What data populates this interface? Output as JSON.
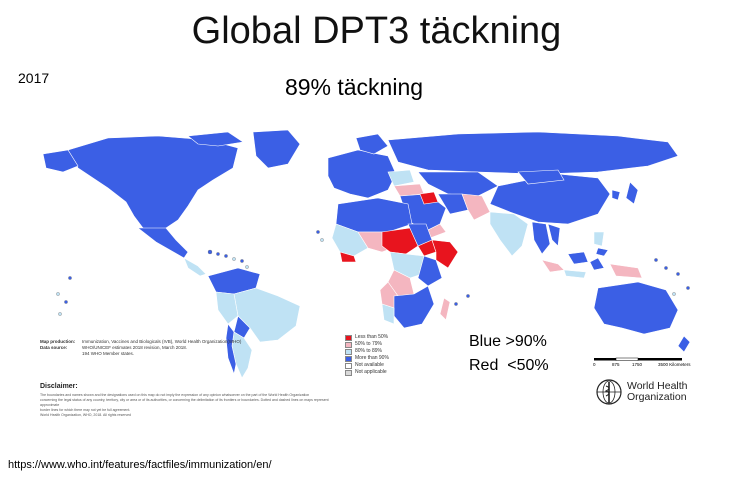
{
  "title": "Global DPT3 täckning",
  "year": "2017",
  "subtitle": "89% täckning",
  "legend": {
    "items": [
      {
        "label": "Less than 50%",
        "color": "#e8141e"
      },
      {
        "label": "50% to 79%",
        "color": "#f4b6c0"
      },
      {
        "label": "80% to 89%",
        "color": "#bfe2f4"
      },
      {
        "label": "More than 90%",
        "color": "#3b5fe5"
      },
      {
        "label": "Not available",
        "color": "#ffffff"
      },
      {
        "label": "Not applicable",
        "color": "#d9d9d9"
      }
    ]
  },
  "note": {
    "blue": "Blue >90%",
    "red": "Red  <50%"
  },
  "production": {
    "map_label": "Map production:",
    "map_text": "Immunization, Vaccines and Biologicals (IVB), World Health Organization(WHO)",
    "data_label": "Data source:",
    "data_text": "WHO/UNICEF estimates 2018 revision, March 2018.",
    "member_text": "194 WHO Member states."
  },
  "disclaimer_title": "Disclaimer:",
  "disclaimer_lines": [
    "The boundaries and names shown and the designations used on this map do not imply the expression of any opinion whatsoever on the part of the World Health Organization",
    "concerning the legal status of any country, territory, city or area or of its authorities, or concerning the delimitation of its frontiers or boundaries. Dotted and dashed lines on maps represent approximate",
    "border lines for which there may not yet be full agreement.",
    "World Health Organization, WHO, 2018. All rights reserved"
  ],
  "scale": {
    "t0": "0",
    "t1": "875",
    "t2": "1750",
    "t3": "3500 Kilometers"
  },
  "who": {
    "line1": "World Health",
    "line2": "Organization"
  },
  "url": "https://www.who.int/features/factfiles/immunization/en/",
  "colors": {
    "blue": "#3b5fe5",
    "red": "#e8141e",
    "pink": "#f4b6c0",
    "light_blue": "#bfe2f4",
    "ocean": "#ffffff"
  }
}
